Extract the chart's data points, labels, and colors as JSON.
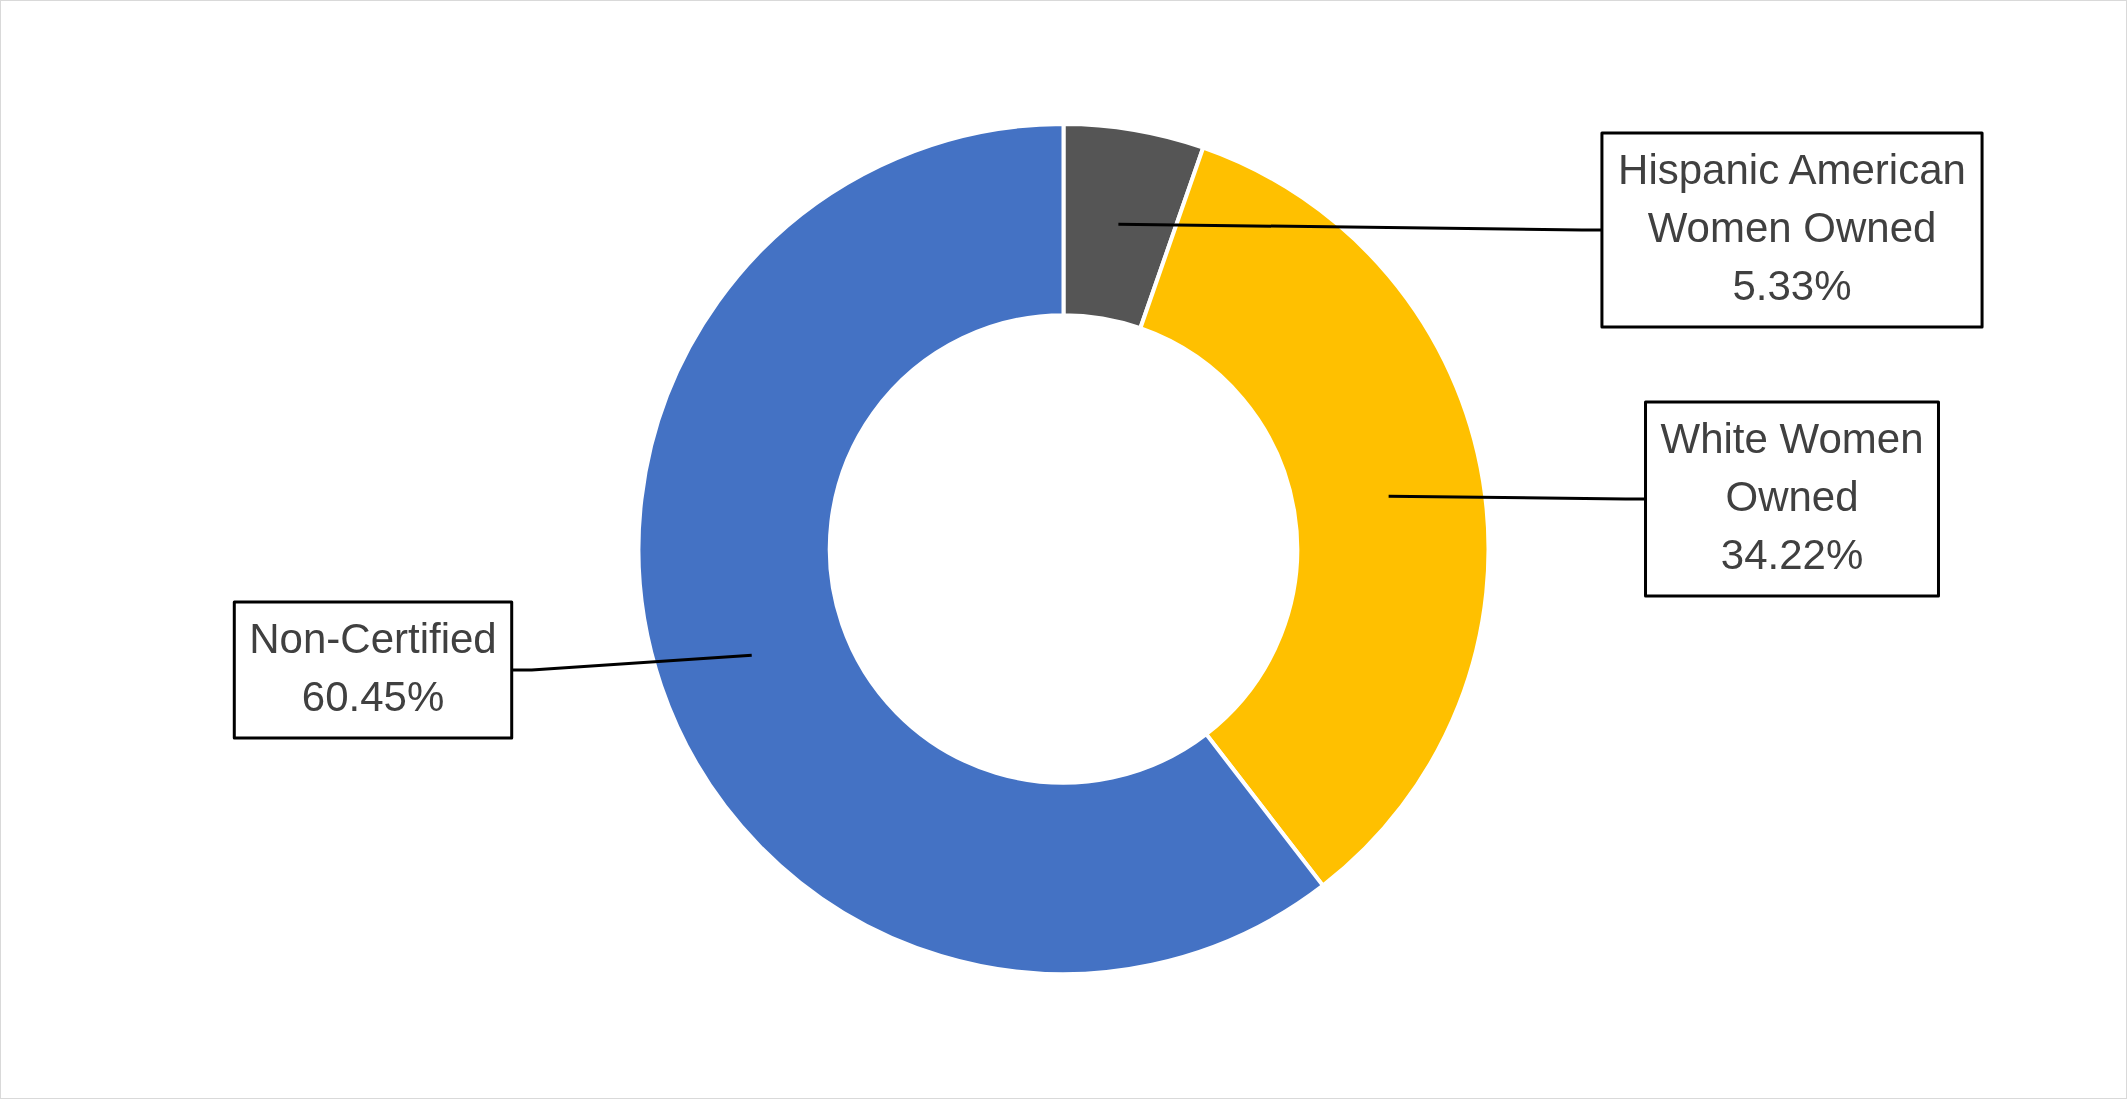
{
  "chart_data": {
    "type": "donut",
    "categories": [
      "Hispanic American Women Owned",
      "White Women Owned",
      "Non-Certified"
    ],
    "values": [
      5.33,
      34.22,
      60.45
    ],
    "colors": [
      "#555555",
      "#ffc000",
      "#4472c4"
    ],
    "value_labels": [
      "5.33%",
      "34.22%",
      "60.45%"
    ],
    "legend": false
  }
}
